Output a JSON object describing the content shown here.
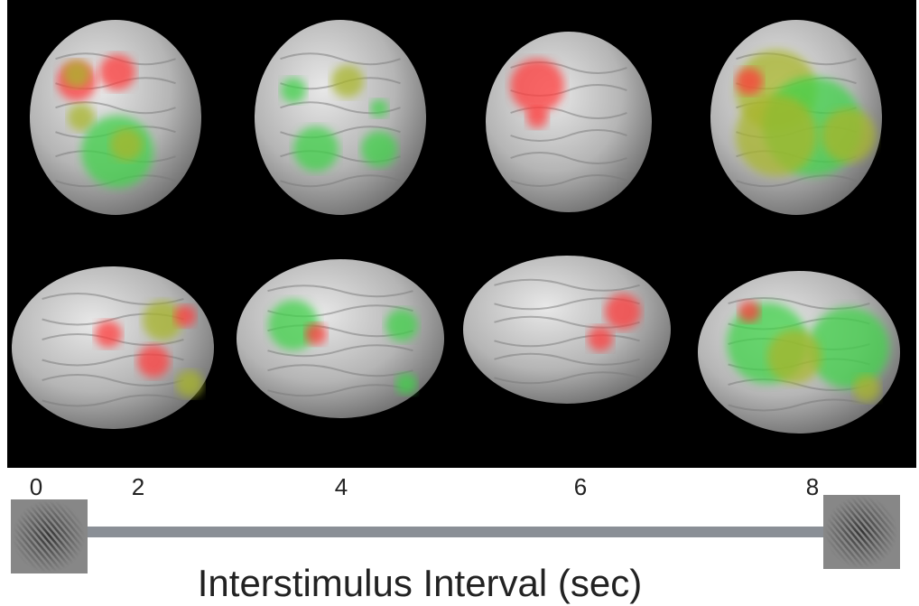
{
  "timeline": {
    "ticks": [
      0,
      2,
      4,
      6,
      8
    ],
    "label": "Interstimulus Interval (sec)"
  }
}
